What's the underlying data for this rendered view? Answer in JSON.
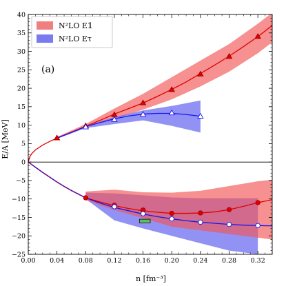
{
  "chart_data": {
    "type": "line",
    "xlabel": "n [fm⁻³]",
    "ylabel": "E/A [MeV]",
    "xlim": [
      0.0,
      0.34
    ],
    "ylim": [
      -25,
      40
    ],
    "x_ticks": [
      0.0,
      0.04,
      0.08,
      0.12,
      0.16,
      0.2,
      0.24,
      0.28,
      0.32
    ],
    "x_tick_labels": [
      "0.00",
      "0.04",
      "0.08",
      "0.12",
      "0.16",
      "0.20",
      "0.24",
      "0.28",
      "0.32"
    ],
    "y_ticks": [
      -25,
      -20,
      -15,
      -10,
      -5,
      0,
      5,
      10,
      15,
      20,
      25,
      30,
      35,
      40
    ],
    "y_tick_labels": [
      "−25",
      "−20",
      "−15",
      "−10",
      "−5",
      "0",
      "5",
      "10",
      "15",
      "20",
      "25",
      "30",
      "35",
      "40"
    ],
    "grid": false,
    "legend_position": "top-left",
    "panel_label": "(a)",
    "legend": [
      {
        "label": "N²LO E𝟙",
        "color": "#f08080"
      },
      {
        "label": "N²LO Eτ",
        "color": "#7b7bf0"
      }
    ],
    "bands": [
      {
        "name": "N²LO E𝟙 neutron matter",
        "color": "#f25555",
        "opacity": 0.65,
        "x": [
          0.04,
          0.08,
          0.12,
          0.16,
          0.2,
          0.24,
          0.28,
          0.32,
          0.34
        ],
        "upper": [
          6.8,
          10.3,
          14.5,
          18.5,
          23.0,
          27.5,
          32.0,
          37.5,
          40.5
        ],
        "lower": [
          6.3,
          9.5,
          11.7,
          14.2,
          17.0,
          20.5,
          24.5,
          29.5,
          32.5
        ]
      },
      {
        "name": "N²LO Eτ neutron matter",
        "color": "#6464f0",
        "opacity": 0.7,
        "x": [
          0.04,
          0.08,
          0.12,
          0.16,
          0.2,
          0.24
        ],
        "upper": [
          6.7,
          9.7,
          12.2,
          14.0,
          15.2,
          16.7
        ],
        "lower": [
          6.3,
          9.2,
          10.3,
          11.3,
          9.8,
          8.0
        ]
      },
      {
        "name": "N²LO Eτ symmetric matter",
        "color": "#6464f0",
        "opacity": 0.7,
        "x": [
          0.08,
          0.12,
          0.16,
          0.2,
          0.24,
          0.28,
          0.32
        ],
        "upper": [
          -8.3,
          -8.5,
          -9.0,
          -9.6,
          -9.8,
          -9.8,
          -9.8
        ],
        "lower": [
          -10.0,
          -15.8,
          -18.0,
          -20.0,
          -22.0,
          -24.0,
          -25.0
        ]
      },
      {
        "name": "N²LO E𝟙 symmetric matter",
        "color": "#f25555",
        "opacity": 0.65,
        "x": [
          0.08,
          0.12,
          0.16,
          0.2,
          0.24,
          0.28,
          0.32,
          0.34
        ],
        "upper": [
          -8.0,
          -7.5,
          -8.2,
          -8.3,
          -7.8,
          -6.5,
          -5.2,
          -4.8
        ],
        "lower": [
          -10.3,
          -13.0,
          -15.2,
          -17.5,
          -18.5,
          -19.5,
          -20.5,
          -21.0
        ]
      }
    ],
    "curves": [
      {
        "name": "E𝟙 neutron fit",
        "color": "#e00000",
        "x": [
          0.0,
          0.002,
          0.005,
          0.01,
          0.02,
          0.03,
          0.04,
          0.06,
          0.08,
          0.1,
          0.12,
          0.14,
          0.16,
          0.18,
          0.2,
          0.22,
          0.24,
          0.26,
          0.28,
          0.3,
          0.32,
          0.34
        ],
        "y": [
          0.0,
          1.4,
          2.3,
          3.3,
          4.6,
          5.6,
          6.5,
          8.1,
          9.7,
          11.3,
          13.0,
          14.5,
          16.0,
          17.8,
          19.7,
          21.7,
          24.0,
          26.3,
          28.7,
          31.3,
          34.0,
          37.0
        ]
      },
      {
        "name": "Eτ neutron fit",
        "color": "#1515ee",
        "x": [
          0.04,
          0.06,
          0.08,
          0.1,
          0.12,
          0.14,
          0.16,
          0.18,
          0.2,
          0.22,
          0.24
        ],
        "y": [
          6.5,
          8.0,
          9.6,
          10.7,
          11.7,
          12.5,
          13.0,
          13.2,
          13.2,
          12.9,
          12.4
        ]
      },
      {
        "name": "E𝟙 symmetric fit",
        "color": "#e00000",
        "x": [
          0.08,
          0.1,
          0.12,
          0.14,
          0.16,
          0.18,
          0.2,
          0.22,
          0.24,
          0.26,
          0.28,
          0.3,
          0.32,
          0.34
        ],
        "y": [
          -9.7,
          -10.8,
          -11.8,
          -12.6,
          -13.2,
          -13.6,
          -13.9,
          -13.9,
          -13.8,
          -13.5,
          -12.9,
          -12.0,
          -11.0,
          -10.2
        ]
      },
      {
        "name": "Eτ symmetric fit",
        "color": "#1515ee",
        "x": [
          0.08,
          0.1,
          0.12,
          0.14,
          0.16,
          0.18,
          0.2,
          0.22,
          0.24,
          0.26,
          0.28,
          0.3,
          0.32,
          0.34
        ],
        "y": [
          -9.7,
          -11.1,
          -12.3,
          -13.2,
          -14.1,
          -14.8,
          -15.4,
          -15.9,
          -16.3,
          -16.6,
          -16.9,
          -17.1,
          -17.2,
          -17.3
        ]
      }
    ],
    "dotted_curves": [
      {
        "name": "E𝟙 symmetric extrapolation",
        "color": "#e00000",
        "dash": "1.5,3",
        "x": [
          0.0,
          0.01,
          0.02,
          0.03,
          0.04,
          0.05,
          0.06,
          0.07,
          0.08
        ],
        "y": [
          0.0,
          -1.4,
          -2.8,
          -4.1,
          -5.4,
          -6.6,
          -7.7,
          -8.7,
          -9.7
        ]
      },
      {
        "name": "Eτ symmetric extrapolation",
        "color": "#1515ee",
        "dash": "1.5,3",
        "offset": 2,
        "x": [
          0.0,
          0.01,
          0.02,
          0.03,
          0.04,
          0.05,
          0.06,
          0.07,
          0.08
        ],
        "y": [
          0.0,
          -1.4,
          -2.8,
          -4.1,
          -5.4,
          -6.6,
          -7.7,
          -8.7,
          -9.7
        ]
      }
    ],
    "points": [
      {
        "series": "E𝟙 neutron",
        "marker": "triangle",
        "fill": "#e00000",
        "stroke": "#a00000",
        "x": [
          0.04,
          0.08,
          0.12,
          0.16,
          0.2,
          0.24,
          0.28,
          0.32
        ],
        "y": [
          6.5,
          9.8,
          12.8,
          16.0,
          19.6,
          23.8,
          28.6,
          34.0
        ]
      },
      {
        "series": "Eτ neutron",
        "marker": "triangle",
        "fill": "#ffffff",
        "stroke": "#1515ee",
        "x": [
          0.08,
          0.12,
          0.16,
          0.2,
          0.24
        ],
        "y": [
          9.5,
          11.5,
          12.9,
          13.3,
          12.4
        ]
      },
      {
        "series": "E𝟙 symmetric",
        "marker": "circle",
        "fill": "#e00000",
        "stroke": "#a00000",
        "x": [
          0.08,
          0.12,
          0.16,
          0.2,
          0.24,
          0.28,
          0.32
        ],
        "y": [
          -9.7,
          -11.7,
          -13.0,
          -13.9,
          -13.8,
          -12.9,
          -11.0
        ]
      },
      {
        "series": "Eτ symmetric",
        "marker": "circle",
        "fill": "#ffffff",
        "stroke": "#1515ee",
        "x": [
          0.12,
          0.16,
          0.2,
          0.24,
          0.28,
          0.32
        ],
        "y": [
          -12.1,
          -14.0,
          -15.4,
          -16.3,
          -16.9,
          -17.2
        ]
      }
    ],
    "empirical_box": {
      "x": [
        0.155,
        0.17
      ],
      "y": [
        -16.5,
        -15.5
      ],
      "fill": "#5fbf5f",
      "stroke": "#1a1a1a"
    }
  }
}
